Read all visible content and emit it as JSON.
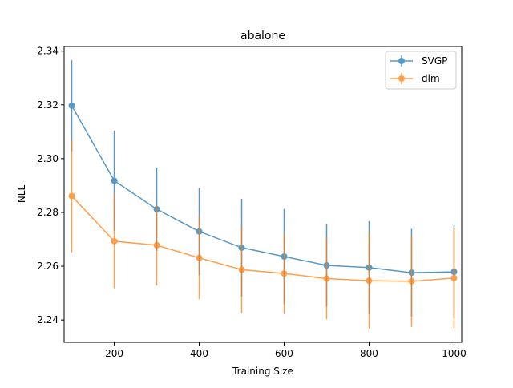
{
  "chart_data": {
    "type": "line",
    "title": "abalone",
    "xlabel": "Training Size",
    "ylabel": "NLL",
    "xlim": [
      82,
      1018
    ],
    "ylim": [
      2.2317,
      2.3417
    ],
    "xticks": [
      200,
      400,
      600,
      800,
      1000
    ],
    "yticks": [
      2.24,
      2.26,
      2.28,
      2.3,
      2.32,
      2.34
    ],
    "ytick_labels": [
      "2.24",
      "2.26",
      "2.28",
      "2.30",
      "2.32",
      "2.34"
    ],
    "grid": false,
    "legend_position": "top-right",
    "x": [
      100,
      200,
      300,
      400,
      500,
      600,
      700,
      800,
      900,
      1000
    ],
    "series": [
      {
        "name": "SVGP",
        "color": "#1f77b4",
        "values": [
          2.3197,
          2.2918,
          2.2812,
          2.2729,
          2.2669,
          2.2636,
          2.2603,
          2.2595,
          2.2576,
          2.2579
        ],
        "errors": [
          0.0169,
          0.0186,
          0.0155,
          0.0162,
          0.0182,
          0.0177,
          0.0153,
          0.0173,
          0.0163,
          0.0173
        ]
      },
      {
        "name": "dlm",
        "color": "#ff7f0e",
        "values": [
          2.2861,
          2.2693,
          2.2678,
          2.2631,
          2.2587,
          2.2573,
          2.2554,
          2.2546,
          2.2544,
          2.2556
        ],
        "errors": [
          0.021,
          0.0175,
          0.015,
          0.0154,
          0.0162,
          0.0151,
          0.0151,
          0.0178,
          0.017,
          0.0187
        ]
      }
    ]
  }
}
